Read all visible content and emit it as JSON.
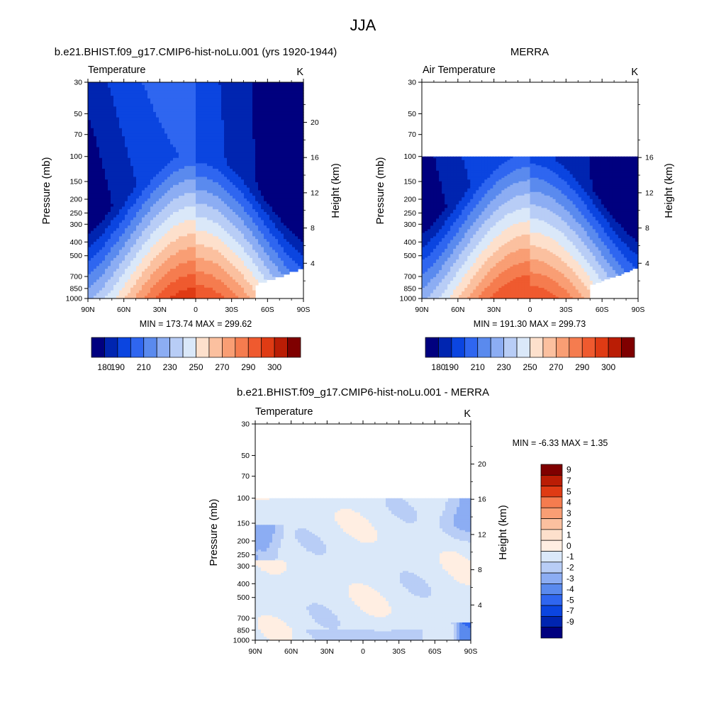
{
  "figure": {
    "title": "JJA"
  },
  "chart_data": [
    {
      "type": "heatmap",
      "panel_id": "model",
      "subtitle": "b.e21.BHIST.f09_g17.CMIP6-hist-noLu.001 (yrs 1920-1944)",
      "left_label": "Temperature",
      "units": "K",
      "ylabel": "Pressure (mb)",
      "y2label": "Height (km)",
      "x_ticks": [
        "90N",
        "60N",
        "30N",
        "0",
        "30S",
        "60S",
        "90S"
      ],
      "y_ticks": [
        "30",
        "50",
        "70",
        "100",
        "150",
        "200",
        "250",
        "300",
        "400",
        "500",
        "700",
        "850",
        "1000"
      ],
      "y2_ticks": [
        "20",
        "16",
        "12",
        "8",
        "4"
      ],
      "data_top_mb": 30,
      "stats": {
        "min": "173.74",
        "max": "299.62",
        "text": "MIN = 173.74  MAX = 299.62"
      },
      "field": "temperature",
      "colorbar": {
        "orientation": "horizontal",
        "labels": [
          "180",
          "190",
          "210",
          "230",
          "250",
          "270",
          "290",
          "300"
        ],
        "levels": [
          180,
          190,
          200,
          210,
          220,
          230,
          240,
          250,
          260,
          270,
          280,
          290,
          300
        ],
        "colors": [
          "#00007f",
          "#0025b0",
          "#0b45e0",
          "#2f66f0",
          "#5a8aee",
          "#8cadf3",
          "#b8cdf6",
          "#dae8f9",
          "#fde0cc",
          "#fbc09f",
          "#f99e74",
          "#f57c4f",
          "#ef5a2f",
          "#df3b14",
          "#ba1d05",
          "#7f0000"
        ]
      }
    },
    {
      "type": "heatmap",
      "panel_id": "merra",
      "subtitle": "MERRA",
      "left_label": "Air Temperature",
      "units": "K",
      "ylabel": "Pressure (mb)",
      "y2label": "Height (km)",
      "x_ticks": [
        "90N",
        "60N",
        "30N",
        "0",
        "30S",
        "60S",
        "90S"
      ],
      "y_ticks": [
        "30",
        "50",
        "70",
        "100",
        "150",
        "200",
        "250",
        "300",
        "400",
        "500",
        "700",
        "850",
        "1000"
      ],
      "y2_ticks": [
        "16",
        "12",
        "8",
        "4"
      ],
      "data_top_mb": 100,
      "stats": {
        "min": "191.30",
        "max": "299.73",
        "text": "MIN = 191.30  MAX = 299.73"
      },
      "field": "temperature",
      "colorbar": {
        "orientation": "horizontal",
        "labels": [
          "180",
          "190",
          "210",
          "230",
          "250",
          "270",
          "290",
          "300"
        ],
        "levels": [
          180,
          190,
          200,
          210,
          220,
          230,
          240,
          250,
          260,
          270,
          280,
          290,
          300
        ],
        "colors": [
          "#00007f",
          "#0025b0",
          "#0b45e0",
          "#2f66f0",
          "#5a8aee",
          "#8cadf3",
          "#b8cdf6",
          "#dae8f9",
          "#fde0cc",
          "#fbc09f",
          "#f99e74",
          "#f57c4f",
          "#ef5a2f",
          "#df3b14",
          "#ba1d05",
          "#7f0000"
        ]
      }
    },
    {
      "type": "heatmap",
      "panel_id": "diff",
      "subtitle": "b.e21.BHIST.f09_g17.CMIP6-hist-noLu.001 - MERRA",
      "left_label": "Temperature",
      "units": "K",
      "ylabel": "Pressure (mb)",
      "y2label": "Height (km)",
      "x_ticks": [
        "90N",
        "60N",
        "30N",
        "0",
        "30S",
        "60S",
        "90S"
      ],
      "y_ticks": [
        "30",
        "50",
        "70",
        "100",
        "150",
        "200",
        "250",
        "300",
        "400",
        "500",
        "700",
        "850",
        "1000"
      ],
      "y2_ticks": [
        "20",
        "16",
        "12",
        "8",
        "4"
      ],
      "data_top_mb": 100,
      "stats": {
        "min": "-6.33",
        "max": "1.35",
        "text": "MIN =  -6.33  MAX =   1.35"
      },
      "field": "difference",
      "colorbar": {
        "orientation": "vertical",
        "labels": [
          "9",
          "7",
          "5",
          "4",
          "3",
          "2",
          "1",
          "0",
          "-1",
          "-2",
          "-3",
          "-4",
          "-5",
          "-7",
          "-9"
        ],
        "levels": [
          9,
          7,
          5,
          4,
          3,
          2,
          1,
          0,
          -1,
          -2,
          -3,
          -4,
          -5,
          -7,
          -9
        ],
        "colors": [
          "#7f0000",
          "#ba1d05",
          "#df3b14",
          "#f57c4f",
          "#f99e74",
          "#fbc09f",
          "#fde0cc",
          "#ffeee2",
          "#dae8f9",
          "#b8cdf6",
          "#8cadf3",
          "#5a8aee",
          "#2f66f0",
          "#0b45e0",
          "#0025b0",
          "#00007f"
        ]
      }
    }
  ]
}
